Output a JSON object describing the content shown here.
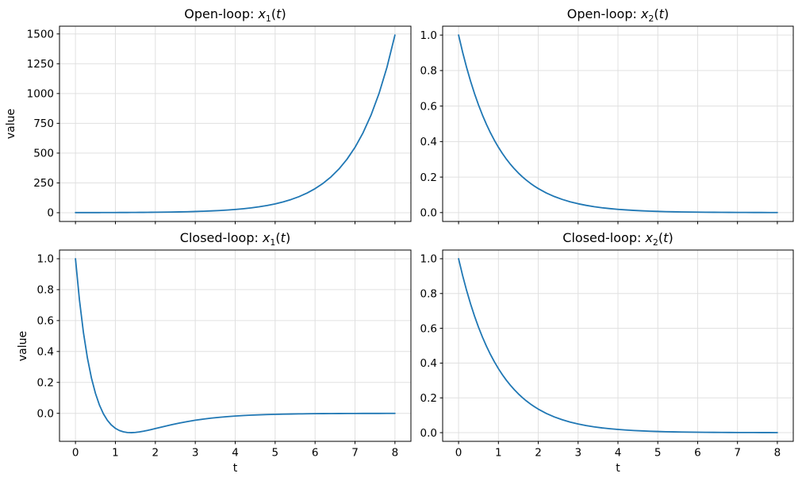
{
  "style": {
    "background": "#ffffff",
    "line_color": "#1f77b4",
    "grid_color": "#e0e0e0",
    "spine_color": "#000000",
    "tick_label_color": "#000000",
    "line_width": 1.8
  },
  "chart_data": [
    {
      "id": "open-loop-x1",
      "type": "line",
      "title": "Open-loop: x₁(t)",
      "title_parts": {
        "pre": "Open-loop: ",
        "var": "x",
        "sub": "1",
        "open": "(",
        "arg": "t",
        "close": ")"
      },
      "xlabel": "",
      "ylabel": "value",
      "grid": true,
      "legend": null,
      "xlim": [
        -0.4,
        8.4
      ],
      "ylim": [
        -73.5,
        1565
      ],
      "x_ticks": [
        0,
        1,
        2,
        3,
        4,
        5,
        6,
        7,
        8
      ],
      "x_tick_labels": [],
      "y_ticks": [
        0,
        250,
        500,
        750,
        1000,
        1250,
        1500
      ],
      "y_tick_labels": [
        "0",
        "250",
        "500",
        "750",
        "1000",
        "1250",
        "1500"
      ],
      "x": [
        0,
        0.1,
        0.2,
        0.3,
        0.4,
        0.5,
        0.6,
        0.7,
        0.8,
        0.9,
        1,
        1.1,
        1.2,
        1.3,
        1.4,
        1.5,
        1.6,
        1.7,
        1.8,
        1.9,
        2,
        2.2,
        2.4,
        2.6,
        2.8,
        3,
        3.2,
        3.4,
        3.6,
        3.8,
        4,
        4.2,
        4.4,
        4.6,
        4.8,
        5,
        5.2,
        5.4,
        5.6,
        5.8,
        6,
        6.2,
        6.4,
        6.6,
        6.8,
        7,
        7.2,
        7.4,
        7.6,
        7.8,
        8
      ],
      "y": [
        1,
        1.005,
        1.0201,
        1.0453,
        1.0811,
        1.1276,
        1.1855,
        1.2552,
        1.3374,
        1.4331,
        1.5431,
        1.6685,
        1.8107,
        1.9709,
        2.1509,
        2.3524,
        2.5775,
        2.8283,
        3.1075,
        3.4177,
        3.7622,
        4.5679,
        5.5569,
        6.769,
        8.2527,
        10.0677,
        12.2866,
        14.9987,
        18.3128,
        22.3618,
        27.3082,
        33.3507,
        40.7316,
        49.7472,
        60.7593,
        74.2099,
        90.6389,
        110.7055,
        135.215,
        165.1513,
        201.7156,
        246.3755,
        300.9234,
        367.5483,
        448.9242,
        548.317,
        669.7158,
        817.9923,
        999.0982,
        1220.295,
        1490.479
      ]
    },
    {
      "id": "open-loop-x2",
      "type": "line",
      "title": "Open-loop: x₂(t)",
      "title_parts": {
        "pre": "Open-loop: ",
        "var": "x",
        "sub": "2",
        "open": "(",
        "arg": "t",
        "close": ")"
      },
      "xlabel": "",
      "ylabel": "",
      "grid": true,
      "legend": null,
      "xlim": [
        -0.4,
        8.4
      ],
      "ylim": [
        -0.05,
        1.05
      ],
      "x_ticks": [
        0,
        1,
        2,
        3,
        4,
        5,
        6,
        7,
        8
      ],
      "x_tick_labels": [],
      "y_ticks": [
        0.0,
        0.2,
        0.4,
        0.6,
        0.8,
        1.0
      ],
      "y_tick_labels": [
        "0.0",
        "0.2",
        "0.4",
        "0.6",
        "0.8",
        "1.0"
      ],
      "x": [
        0,
        0.1,
        0.2,
        0.3,
        0.4,
        0.5,
        0.6,
        0.7,
        0.8,
        0.9,
        1,
        1.1,
        1.2,
        1.3,
        1.4,
        1.5,
        1.6,
        1.7,
        1.8,
        1.9,
        2,
        2.2,
        2.4,
        2.6,
        2.8,
        3,
        3.2,
        3.4,
        3.6,
        3.8,
        4,
        4.2,
        4.4,
        4.6,
        4.8,
        5,
        5.2,
        5.4,
        5.6,
        5.8,
        6,
        6.2,
        6.4,
        6.6,
        6.8,
        7,
        7.2,
        7.4,
        7.6,
        7.8,
        8
      ],
      "y": [
        1,
        0.9048,
        0.8187,
        0.7408,
        0.6703,
        0.6065,
        0.5488,
        0.4966,
        0.4493,
        0.4066,
        0.3679,
        0.3329,
        0.3012,
        0.2725,
        0.2466,
        0.2231,
        0.2019,
        0.1827,
        0.1653,
        0.1496,
        0.1353,
        0.1108,
        0.0907,
        0.0743,
        0.0608,
        0.0498,
        0.0408,
        0.0334,
        0.0273,
        0.0224,
        0.0183,
        0.015,
        0.0123,
        0.0101,
        0.0082,
        0.0067,
        0.0055,
        0.0045,
        0.0037,
        0.003,
        0.0025,
        0.002,
        0.0017,
        0.0014,
        0.0011,
        0.0009,
        0.0007,
        0.0006,
        0.0005,
        0.0004,
        0.0003
      ]
    },
    {
      "id": "closed-loop-x1",
      "type": "line",
      "title": "Closed-loop: x₁(t)",
      "title_parts": {
        "pre": "Closed-loop: ",
        "var": "x",
        "sub": "1",
        "open": "(",
        "arg": "t",
        "close": ")"
      },
      "xlabel": "t",
      "ylabel": "value",
      "grid": true,
      "legend": null,
      "xlim": [
        -0.4,
        8.4
      ],
      "ylim": [
        -0.1813,
        1.0563
      ],
      "x_ticks": [
        0,
        1,
        2,
        3,
        4,
        5,
        6,
        7,
        8
      ],
      "x_tick_labels": [
        "0",
        "1",
        "2",
        "3",
        "4",
        "5",
        "6",
        "7",
        "8"
      ],
      "y_ticks": [
        0.0,
        0.2,
        0.4,
        0.6,
        0.8,
        1.0
      ],
      "y_tick_labels": [
        "0.0",
        "0.2",
        "0.4",
        "0.6",
        "0.8",
        "1.0"
      ],
      "x": [
        0,
        0.1,
        0.2,
        0.3,
        0.4,
        0.5,
        0.6,
        0.7,
        0.8,
        0.9,
        1,
        1.1,
        1.2,
        1.3,
        1.4,
        1.5,
        1.6,
        1.7,
        1.8,
        1.9,
        2,
        2.2,
        2.4,
        2.6,
        2.8,
        3,
        3.2,
        3.4,
        3.6,
        3.8,
        4,
        4.2,
        4.4,
        4.6,
        4.8,
        5,
        5.2,
        5.4,
        5.6,
        5.8,
        6,
        6.2,
        6.4,
        6.6,
        6.8,
        7,
        7.2,
        7.4,
        7.6,
        7.8,
        8
      ],
      "y": [
        1,
        0.7327,
        0.5219,
        0.3568,
        0.2284,
        0.1293,
        0.0536,
        -0.0034,
        -0.0455,
        -0.076,
        -0.0972,
        -0.1113,
        -0.1199,
        -0.124,
        -0.125,
        -0.1235,
        -0.1204,
        -0.1159,
        -0.1107,
        -0.1048,
        -0.0987,
        -0.0862,
        -0.0742,
        -0.0633,
        -0.0534,
        -0.0448,
        -0.0374,
        -0.0311,
        -0.0258,
        -0.0214,
        -0.0176,
        -0.0145,
        -0.012,
        -0.0099,
        -0.0081,
        -0.0066,
        -0.0054,
        -0.0044,
        -0.0036,
        -0.003,
        -0.0024,
        -0.002,
        -0.0016,
        -0.0013,
        -0.0011,
        -0.0009,
        -0.0007,
        -0.0006,
        -0.0005,
        -0.0004,
        -0.0003
      ]
    },
    {
      "id": "closed-loop-x2",
      "type": "line",
      "title": "Closed-loop: x₂(t)",
      "title_parts": {
        "pre": "Closed-loop: ",
        "var": "x",
        "sub": "2",
        "open": "(",
        "arg": "t",
        "close": ")"
      },
      "xlabel": "t",
      "ylabel": "",
      "grid": true,
      "legend": null,
      "xlim": [
        -0.4,
        8.4
      ],
      "ylim": [
        -0.05,
        1.05
      ],
      "x_ticks": [
        0,
        1,
        2,
        3,
        4,
        5,
        6,
        7,
        8
      ],
      "x_tick_labels": [
        "0",
        "1",
        "2",
        "3",
        "4",
        "5",
        "6",
        "7",
        "8"
      ],
      "y_ticks": [
        0.0,
        0.2,
        0.4,
        0.6,
        0.8,
        1.0
      ],
      "y_tick_labels": [
        "0.0",
        "0.2",
        "0.4",
        "0.6",
        "0.8",
        "1.0"
      ],
      "x": [
        0,
        0.1,
        0.2,
        0.3,
        0.4,
        0.5,
        0.6,
        0.7,
        0.8,
        0.9,
        1,
        1.1,
        1.2,
        1.3,
        1.4,
        1.5,
        1.6,
        1.7,
        1.8,
        1.9,
        2,
        2.2,
        2.4,
        2.6,
        2.8,
        3,
        3.2,
        3.4,
        3.6,
        3.8,
        4,
        4.2,
        4.4,
        4.6,
        4.8,
        5,
        5.2,
        5.4,
        5.6,
        5.8,
        6,
        6.2,
        6.4,
        6.6,
        6.8,
        7,
        7.2,
        7.4,
        7.6,
        7.8,
        8
      ],
      "y": [
        1,
        0.9048,
        0.8187,
        0.7408,
        0.6703,
        0.6065,
        0.5488,
        0.4966,
        0.4493,
        0.4066,
        0.3679,
        0.3329,
        0.3012,
        0.2725,
        0.2466,
        0.2231,
        0.2019,
        0.1827,
        0.1653,
        0.1496,
        0.1353,
        0.1108,
        0.0907,
        0.0743,
        0.0608,
        0.0498,
        0.0408,
        0.0334,
        0.0273,
        0.0224,
        0.0183,
        0.015,
        0.0123,
        0.0101,
        0.0082,
        0.0067,
        0.0055,
        0.0045,
        0.0037,
        0.003,
        0.0025,
        0.002,
        0.0017,
        0.0014,
        0.0011,
        0.0009,
        0.0007,
        0.0006,
        0.0005,
        0.0004,
        0.0003
      ]
    }
  ]
}
